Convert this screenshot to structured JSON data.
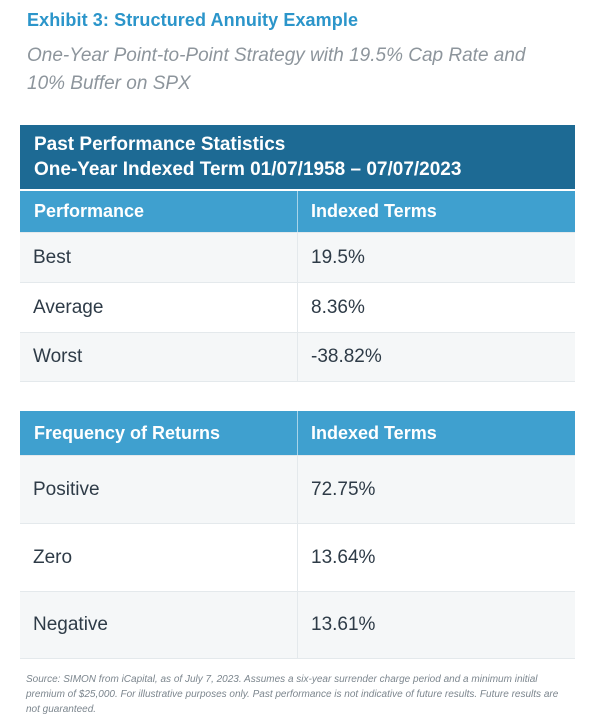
{
  "header": {
    "title": "Exhibit 3: Structured Annuity Example",
    "subtitle": "One-Year Point-to-Point Strategy with 19.5% Cap Rate and 10% Buffer on SPX"
  },
  "performance_table": {
    "banner_line1": "Past Performance Statistics",
    "banner_line2": "One-Year Indexed Term 01/07/1958 – 07/07/2023",
    "col1": "Performance",
    "col2": "Indexed Terms",
    "rows": [
      {
        "label": "Best",
        "value": "19.5%"
      },
      {
        "label": "Average",
        "value": "8.36%"
      },
      {
        "label": "Worst",
        "value": "-38.82%"
      }
    ]
  },
  "frequency_table": {
    "col1": "Frequency of Returns",
    "col2": "Indexed Terms",
    "rows": [
      {
        "label": "Positive",
        "value": "72.75%"
      },
      {
        "label": "Zero",
        "value": "13.64%"
      },
      {
        "label": "Negative",
        "value": "13.61%"
      }
    ]
  },
  "footnote": "Source: SIMON from iCapital, as of July 7, 2023. Assumes a six-year surrender charge period and a minimum initial premium of $25,000. For illustrative purposes only. Past performance is not indicative of future results. Future results are not guaranteed.",
  "colors": {
    "title_blue": "#2b95ca",
    "banner_dark_blue": "#1d6a94",
    "column_header_blue": "#3fa0cf",
    "row_stripe_gray": "#f5f7f8",
    "cell_text": "#2e3b47",
    "subtitle_gray": "#8d959c",
    "footnote_gray": "#7c868e"
  }
}
